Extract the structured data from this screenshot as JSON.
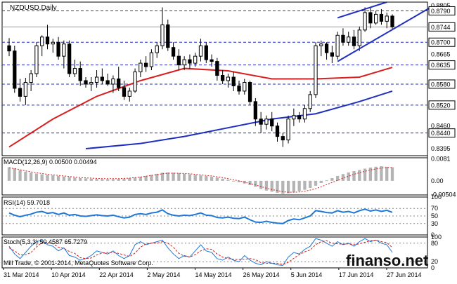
{
  "chart_data": {
    "type": "candlestick",
    "title": "NZDUSD,Daily",
    "price_axis": {
      "range": [
        0.8375,
        0.8815
      ],
      "tick_labels": [
        "0.8805",
        "0.8665",
        "0.8520",
        "0.8460",
        "0.8395"
      ],
      "level_labels": [
        "0.8790",
        "0.8700",
        "0.8635",
        "0.8580",
        "0.8520",
        "0.8440"
      ],
      "levels": [
        0.879,
        0.87,
        0.8635,
        0.858,
        0.852,
        0.844
      ],
      "current_price": 0.8744,
      "current_label": "0.8744"
    },
    "x_labels": [
      "31 Mar 2014",
      "10 Apr 2014",
      "22 Apr 2014",
      "2 May 2014",
      "14 May 2014",
      "26 May 2014",
      "5 Jun 2014",
      "17 Jun 2014",
      "27 Jun 2014"
    ],
    "candles": [
      {
        "o": 0.869,
        "h": 0.8712,
        "l": 0.866,
        "c": 0.8675
      },
      {
        "o": 0.8675,
        "h": 0.869,
        "l": 0.8555,
        "c": 0.8568
      },
      {
        "o": 0.8568,
        "h": 0.8595,
        "l": 0.853,
        "c": 0.8545
      },
      {
        "o": 0.8545,
        "h": 0.8598,
        "l": 0.852,
        "c": 0.8585
      },
      {
        "o": 0.8585,
        "h": 0.862,
        "l": 0.856,
        "c": 0.861
      },
      {
        "o": 0.861,
        "h": 0.87,
        "l": 0.86,
        "c": 0.869
      },
      {
        "o": 0.869,
        "h": 0.872,
        "l": 0.866,
        "c": 0.8715
      },
      {
        "o": 0.8715,
        "h": 0.875,
        "l": 0.868,
        "c": 0.8695
      },
      {
        "o": 0.8695,
        "h": 0.871,
        "l": 0.867,
        "c": 0.87
      },
      {
        "o": 0.87,
        "h": 0.8715,
        "l": 0.865,
        "c": 0.866
      },
      {
        "o": 0.866,
        "h": 0.8705,
        "l": 0.8625,
        "c": 0.8695
      },
      {
        "o": 0.8695,
        "h": 0.8705,
        "l": 0.86,
        "c": 0.861
      },
      {
        "o": 0.861,
        "h": 0.865,
        "l": 0.86,
        "c": 0.8625
      },
      {
        "o": 0.8625,
        "h": 0.8645,
        "l": 0.8575,
        "c": 0.859
      },
      {
        "o": 0.859,
        "h": 0.86,
        "l": 0.857,
        "c": 0.858
      },
      {
        "o": 0.858,
        "h": 0.86,
        "l": 0.856,
        "c": 0.8585
      },
      {
        "o": 0.8585,
        "h": 0.862,
        "l": 0.857,
        "c": 0.86
      },
      {
        "o": 0.86,
        "h": 0.8625,
        "l": 0.858,
        "c": 0.859
      },
      {
        "o": 0.859,
        "h": 0.861,
        "l": 0.8575,
        "c": 0.858
      },
      {
        "o": 0.858,
        "h": 0.8605,
        "l": 0.8555,
        "c": 0.8595
      },
      {
        "o": 0.8595,
        "h": 0.863,
        "l": 0.856,
        "c": 0.857
      },
      {
        "o": 0.857,
        "h": 0.859,
        "l": 0.8535,
        "c": 0.8545
      },
      {
        "o": 0.8545,
        "h": 0.857,
        "l": 0.853,
        "c": 0.856
      },
      {
        "o": 0.856,
        "h": 0.8625,
        "l": 0.8555,
        "c": 0.8615
      },
      {
        "o": 0.8615,
        "h": 0.865,
        "l": 0.86,
        "c": 0.864
      },
      {
        "o": 0.864,
        "h": 0.866,
        "l": 0.8615,
        "c": 0.863
      },
      {
        "o": 0.863,
        "h": 0.868,
        "l": 0.862,
        "c": 0.867
      },
      {
        "o": 0.867,
        "h": 0.87,
        "l": 0.8655,
        "c": 0.869
      },
      {
        "o": 0.869,
        "h": 0.88,
        "l": 0.868,
        "c": 0.875
      },
      {
        "o": 0.875,
        "h": 0.8765,
        "l": 0.8675,
        "c": 0.8685
      },
      {
        "o": 0.8685,
        "h": 0.87,
        "l": 0.865,
        "c": 0.866
      },
      {
        "o": 0.866,
        "h": 0.868,
        "l": 0.862,
        "c": 0.8635
      },
      {
        "o": 0.8635,
        "h": 0.866,
        "l": 0.862,
        "c": 0.865
      },
      {
        "o": 0.865,
        "h": 0.8665,
        "l": 0.8625,
        "c": 0.864
      },
      {
        "o": 0.864,
        "h": 0.867,
        "l": 0.863,
        "c": 0.866
      },
      {
        "o": 0.866,
        "h": 0.871,
        "l": 0.8645,
        "c": 0.869
      },
      {
        "o": 0.869,
        "h": 0.87,
        "l": 0.864,
        "c": 0.865
      },
      {
        "o": 0.865,
        "h": 0.8665,
        "l": 0.863,
        "c": 0.8645
      },
      {
        "o": 0.8645,
        "h": 0.8655,
        "l": 0.859,
        "c": 0.8605
      },
      {
        "o": 0.8605,
        "h": 0.862,
        "l": 0.858,
        "c": 0.859
      },
      {
        "o": 0.859,
        "h": 0.861,
        "l": 0.857,
        "c": 0.86
      },
      {
        "o": 0.86,
        "h": 0.8615,
        "l": 0.856,
        "c": 0.8575
      },
      {
        "o": 0.8575,
        "h": 0.859,
        "l": 0.855,
        "c": 0.856
      },
      {
        "o": 0.856,
        "h": 0.8595,
        "l": 0.855,
        "c": 0.8585
      },
      {
        "o": 0.8585,
        "h": 0.859,
        "l": 0.852,
        "c": 0.853
      },
      {
        "o": 0.853,
        "h": 0.854,
        "l": 0.846,
        "c": 0.848
      },
      {
        "o": 0.848,
        "h": 0.85,
        "l": 0.844,
        "c": 0.8465
      },
      {
        "o": 0.8465,
        "h": 0.849,
        "l": 0.845,
        "c": 0.848
      },
      {
        "o": 0.848,
        "h": 0.85,
        "l": 0.8445,
        "c": 0.846
      },
      {
        "o": 0.846,
        "h": 0.847,
        "l": 0.8415,
        "c": 0.843
      },
      {
        "o": 0.843,
        "h": 0.844,
        "l": 0.84,
        "c": 0.842
      },
      {
        "o": 0.842,
        "h": 0.849,
        "l": 0.841,
        "c": 0.848
      },
      {
        "o": 0.848,
        "h": 0.851,
        "l": 0.846,
        "c": 0.849
      },
      {
        "o": 0.849,
        "h": 0.85,
        "l": 0.847,
        "c": 0.848
      },
      {
        "o": 0.848,
        "h": 0.852,
        "l": 0.847,
        "c": 0.851
      },
      {
        "o": 0.851,
        "h": 0.856,
        "l": 0.85,
        "c": 0.855
      },
      {
        "o": 0.855,
        "h": 0.87,
        "l": 0.854,
        "c": 0.869
      },
      {
        "o": 0.869,
        "h": 0.8705,
        "l": 0.866,
        "c": 0.8695
      },
      {
        "o": 0.8695,
        "h": 0.87,
        "l": 0.865,
        "c": 0.867
      },
      {
        "o": 0.867,
        "h": 0.869,
        "l": 0.864,
        "c": 0.866
      },
      {
        "o": 0.866,
        "h": 0.873,
        "l": 0.865,
        "c": 0.872
      },
      {
        "o": 0.872,
        "h": 0.874,
        "l": 0.869,
        "c": 0.87
      },
      {
        "o": 0.87,
        "h": 0.873,
        "l": 0.869,
        "c": 0.8715
      },
      {
        "o": 0.8715,
        "h": 0.8735,
        "l": 0.868,
        "c": 0.869
      },
      {
        "o": 0.869,
        "h": 0.8745,
        "l": 0.8675,
        "c": 0.8735
      },
      {
        "o": 0.8735,
        "h": 0.88,
        "l": 0.873,
        "c": 0.8785
      },
      {
        "o": 0.8785,
        "h": 0.88,
        "l": 0.874,
        "c": 0.8755
      },
      {
        "o": 0.8755,
        "h": 0.879,
        "l": 0.875,
        "c": 0.878
      },
      {
        "o": 0.878,
        "h": 0.8795,
        "l": 0.875,
        "c": 0.876
      },
      {
        "o": 0.876,
        "h": 0.8785,
        "l": 0.874,
        "c": 0.8775
      },
      {
        "o": 0.8775,
        "h": 0.878,
        "l": 0.8735,
        "c": 0.8744
      }
    ],
    "ma_red": {
      "x": [
        0,
        8,
        16,
        24,
        32,
        40,
        48,
        56,
        64,
        70
      ],
      "y": [
        0.84,
        0.848,
        0.8545,
        0.859,
        0.8625,
        0.8618,
        0.8595,
        0.8595,
        0.86,
        0.8628
      ]
    },
    "ma_blue": {
      "x": [
        14,
        24,
        32,
        40,
        48,
        56,
        64,
        70
      ],
      "y": [
        0.8395,
        0.841,
        0.843,
        0.8455,
        0.848,
        0.8495,
        0.853,
        0.856
      ]
    },
    "channel_upper": {
      "x1": 60,
      "y1": 0.877,
      "x2": 69,
      "y2": 0.8815
    },
    "channel_lower": {
      "x1": 60,
      "y1": 0.8645,
      "x2": 77,
      "y2": 0.88
    },
    "macd": {
      "label": "MACD(12,26,9) 0.00500 0.00494",
      "tick_labels": [
        "0.0081",
        "0.00",
        "-0.00504"
      ],
      "range": [
        -0.0052,
        0.0085
      ],
      "values": [
        0.005,
        0.0046,
        0.004,
        0.0034,
        0.003,
        0.0027,
        0.0024,
        0.0022,
        0.002,
        0.0018,
        0.0016,
        0.0014,
        0.0012,
        0.001,
        0.0009,
        0.0008,
        0.0007,
        0.0006,
        0.0006,
        0.0006,
        0.0007,
        0.0008,
        0.001,
        0.0012,
        0.0015,
        0.0018,
        0.0022,
        0.0026,
        0.003,
        0.0031,
        0.003,
        0.0028,
        0.0026,
        0.0024,
        0.0022,
        0.002,
        0.0018,
        0.0015,
        0.0012,
        0.0008,
        0.0004,
        0.0,
        -0.0005,
        -0.001,
        -0.0016,
        -0.0022,
        -0.003,
        -0.0036,
        -0.004,
        -0.0044,
        -0.0048,
        -0.0046,
        -0.0042,
        -0.0038,
        -0.0033,
        -0.0026,
        -0.0018,
        -0.0008,
        0.0002,
        0.001,
        0.0018,
        0.0025,
        0.0031,
        0.0036,
        0.004,
        0.0045,
        0.0049,
        0.0052,
        0.0054,
        0.0052,
        0.005
      ],
      "signal": [
        0.0048,
        0.0045,
        0.0041,
        0.0037,
        0.0033,
        0.003,
        0.0027,
        0.0024,
        0.0022,
        0.002,
        0.0018,
        0.0016,
        0.0014,
        0.0012,
        0.0011,
        0.001,
        0.0009,
        0.0008,
        0.0008,
        0.0008,
        0.0008,
        0.0009,
        0.001,
        0.0012,
        0.0014,
        0.0017,
        0.002,
        0.0023,
        0.0026,
        0.0028,
        0.0028,
        0.0028,
        0.0027,
        0.0026,
        0.0024,
        0.0022,
        0.002,
        0.0018,
        0.0015,
        0.0012,
        0.0008,
        0.0004,
        0.0,
        -0.0005,
        -0.001,
        -0.0015,
        -0.0021,
        -0.0027,
        -0.0032,
        -0.0036,
        -0.004,
        -0.0042,
        -0.0042,
        -0.0041,
        -0.0038,
        -0.0034,
        -0.0029,
        -0.0022,
        -0.0014,
        -0.0006,
        0.0002,
        0.001,
        0.0017,
        0.0024,
        0.003,
        0.0035,
        0.004,
        0.0044,
        0.0047,
        0.0049,
        0.0049
      ]
    },
    "rsi": {
      "label": "RSI(14) 59.7018",
      "tick_labels": [
        "100",
        "70",
        "50",
        "30",
        "0"
      ],
      "levels": [
        70,
        50,
        30
      ],
      "range": [
        0,
        100
      ],
      "values": [
        58,
        52,
        48,
        52,
        55,
        60,
        62,
        57,
        59,
        54,
        58,
        52,
        54,
        50,
        49,
        51,
        53,
        51,
        50,
        52,
        48,
        45,
        47,
        54,
        56,
        54,
        58,
        60,
        66,
        56,
        52,
        50,
        52,
        51,
        54,
        58,
        52,
        51,
        46,
        45,
        47,
        44,
        43,
        47,
        40,
        34,
        33,
        36,
        33,
        31,
        30,
        38,
        42,
        40,
        45,
        50,
        64,
        62,
        59,
        58,
        64,
        60,
        62,
        58,
        64,
        68,
        63,
        66,
        62,
        65,
        59.7
      ]
    },
    "stoch": {
      "label": "Stoch(5,3,3) 50.4587 65.7279",
      "tick_labels": [
        "100",
        "80",
        "20",
        "0"
      ],
      "levels": [
        80,
        20
      ],
      "range": [
        0,
        100
      ],
      "main": [
        70,
        45,
        30,
        50,
        70,
        85,
        90,
        75,
        70,
        55,
        65,
        40,
        35,
        25,
        30,
        40,
        55,
        50,
        45,
        55,
        40,
        30,
        40,
        75,
        85,
        75,
        80,
        85,
        90,
        65,
        45,
        30,
        40,
        35,
        55,
        75,
        55,
        50,
        30,
        25,
        35,
        25,
        20,
        40,
        25,
        15,
        10,
        20,
        15,
        10,
        8,
        35,
        50,
        45,
        60,
        70,
        95,
        90,
        80,
        70,
        85,
        75,
        80,
        70,
        85,
        95,
        85,
        90,
        80,
        75,
        50
      ],
      "signal": [
        65,
        55,
        42,
        42,
        50,
        68,
        82,
        83,
        78,
        67,
        63,
        53,
        47,
        33,
        30,
        32,
        42,
        48,
        50,
        50,
        47,
        42,
        37,
        48,
        67,
        78,
        80,
        80,
        85,
        80,
        67,
        47,
        38,
        35,
        43,
        55,
        62,
        60,
        45,
        35,
        30,
        28,
        27,
        28,
        30,
        27,
        17,
        15,
        15,
        15,
        11,
        18,
        31,
        43,
        52,
        58,
        75,
        85,
        88,
        80,
        78,
        77,
        78,
        75,
        78,
        83,
        88,
        90,
        85,
        82,
        65.7
      ]
    },
    "footer_text": "Mill Trade, © 2001-2014, MetaQuotes Software Corp.",
    "watermark": "finanso.net",
    "colors": {
      "bull": "#000000",
      "bear": "#000000",
      "ma_red": "#d81e1e",
      "ma_blue": "#1f2fbf",
      "channel": "#1f2fbf",
      "level_line": "#1f2fbf",
      "rsi_line": "#1e78d8",
      "macd_hist": "#b4b4b4",
      "macd_signal": "#d81e1e",
      "stoch_main": "#1e78d8",
      "stoch_signal": "#d81e1e",
      "label_bg": "#ffffff"
    }
  }
}
